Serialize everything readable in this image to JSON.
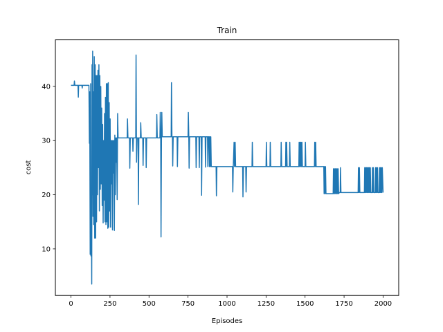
{
  "chart_data": {
    "type": "line",
    "title": "Train",
    "xlabel": "Episodes",
    "ylabel": "cost",
    "xlim": [
      -100,
      2100
    ],
    "ylim": [
      1.4,
      48.6
    ],
    "xticks": [
      0,
      250,
      500,
      750,
      1000,
      1250,
      1500,
      1750,
      2000
    ],
    "yticks": [
      10,
      20,
      30,
      40
    ],
    "grid": false,
    "legend": "none",
    "series": [
      {
        "color": "#1f77b4",
        "points": [
          [
            0,
            40.2
          ],
          [
            20,
            40.2
          ],
          [
            22,
            41
          ],
          [
            25,
            40.2
          ],
          [
            45,
            40.2
          ],
          [
            47,
            38
          ],
          [
            49,
            40.2
          ],
          [
            70,
            40.2
          ],
          [
            72,
            39.7
          ],
          [
            74,
            40.2
          ],
          [
            110,
            40.2
          ],
          [
            115,
            40.2
          ],
          [
            118,
            29.5
          ],
          [
            120,
            39
          ],
          [
            123,
            9
          ],
          [
            126,
            40.5
          ],
          [
            128,
            8.7
          ],
          [
            131,
            15
          ],
          [
            133,
            3.5
          ],
          [
            135,
            44
          ],
          [
            137,
            20
          ],
          [
            139,
            46.5
          ],
          [
            141,
            16
          ],
          [
            144,
            39
          ],
          [
            146,
            14.5
          ],
          [
            149,
            45.5
          ],
          [
            152,
            12
          ],
          [
            155,
            44
          ],
          [
            158,
            12
          ],
          [
            161,
            42
          ],
          [
            164,
            15
          ],
          [
            167,
            42
          ],
          [
            170,
            20
          ],
          [
            173,
            43
          ],
          [
            176,
            25
          ],
          [
            179,
            44
          ],
          [
            182,
            17
          ],
          [
            185,
            42
          ],
          [
            188,
            21
          ],
          [
            191,
            40
          ],
          [
            194,
            22
          ],
          [
            197,
            36
          ],
          [
            200,
            18
          ],
          [
            203,
            33
          ],
          [
            206,
            14.8
          ],
          [
            209,
            30
          ],
          [
            212,
            19
          ],
          [
            215,
            35
          ],
          [
            218,
            15
          ],
          [
            221,
            38
          ],
          [
            224,
            14.5
          ],
          [
            227,
            40.5
          ],
          [
            230,
            15
          ],
          [
            233,
            40.5
          ],
          [
            236,
            13.8
          ],
          [
            239,
            40.7
          ],
          [
            242,
            14
          ],
          [
            245,
            37
          ],
          [
            248,
            17
          ],
          [
            251,
            34
          ],
          [
            254,
            14
          ],
          [
            257,
            30
          ],
          [
            260,
            22
          ],
          [
            263,
            30
          ],
          [
            266,
            13.5
          ],
          [
            269,
            30
          ],
          [
            272,
            24
          ],
          [
            275,
            30
          ],
          [
            278,
            13.4
          ],
          [
            281,
            31
          ],
          [
            284,
            20
          ],
          [
            287,
            30.5
          ],
          [
            290,
            26
          ],
          [
            293,
            30.5
          ],
          [
            296,
            19.1
          ],
          [
            299,
            35
          ],
          [
            302,
            30.5
          ],
          [
            360,
            30.5
          ],
          [
            362,
            34
          ],
          [
            365,
            30.5
          ],
          [
            375,
            30.5
          ],
          [
            377,
            24.9
          ],
          [
            380,
            30.5
          ],
          [
            395,
            30.5
          ],
          [
            397,
            28
          ],
          [
            400,
            30.5
          ],
          [
            415,
            30.5
          ],
          [
            417,
            45.8
          ],
          [
            420,
            26
          ],
          [
            423,
            30.5
          ],
          [
            430,
            30.5
          ],
          [
            432,
            18.2
          ],
          [
            435,
            30.5
          ],
          [
            445,
            30.5
          ],
          [
            447,
            33.3
          ],
          [
            450,
            30.5
          ],
          [
            460,
            30.5
          ],
          [
            462,
            25.4
          ],
          [
            465,
            30.5
          ],
          [
            480,
            30.5
          ],
          [
            482,
            25
          ],
          [
            485,
            30.5
          ],
          [
            548,
            30.5
          ],
          [
            550,
            34.8
          ],
          [
            553,
            30.5
          ],
          [
            570,
            30.5
          ],
          [
            572,
            35.2
          ],
          [
            575,
            30.5
          ],
          [
            577,
            12.2
          ],
          [
            580,
            30.7
          ],
          [
            582,
            35.2
          ],
          [
            585,
            30.7
          ],
          [
            642,
            30.7
          ],
          [
            644,
            40.7
          ],
          [
            647,
            30.7
          ],
          [
            650,
            30.7
          ],
          [
            652,
            25.3
          ],
          [
            655,
            30.7
          ],
          [
            680,
            30.7
          ],
          [
            682,
            25.2
          ],
          [
            685,
            30.7
          ],
          [
            750,
            30.7
          ],
          [
            752,
            35.2
          ],
          [
            755,
            30.7
          ],
          [
            757,
            24.9
          ],
          [
            760,
            30.7
          ],
          [
            800,
            30.7
          ],
          [
            802,
            25
          ],
          [
            805,
            30.7
          ],
          [
            820,
            30.7
          ],
          [
            822,
            25
          ],
          [
            825,
            30.7
          ],
          [
            835,
            30.7
          ],
          [
            837,
            19.9
          ],
          [
            840,
            30.7
          ],
          [
            860,
            30.7
          ],
          [
            862,
            25.1
          ],
          [
            865,
            30.7
          ],
          [
            875,
            30.7
          ],
          [
            877,
            25.2
          ],
          [
            880,
            30.7
          ],
          [
            885,
            30.7
          ],
          [
            887,
            25.2
          ],
          [
            890,
            30.7
          ],
          [
            893,
            25.2
          ],
          [
            896,
            30.7
          ],
          [
            899,
            25.2
          ],
          [
            930,
            25.2
          ],
          [
            932,
            19.8
          ],
          [
            935,
            25.2
          ],
          [
            1035,
            25.2
          ],
          [
            1037,
            20.5
          ],
          [
            1040,
            25.2
          ],
          [
            1045,
            29.7
          ],
          [
            1048,
            25.2
          ],
          [
            1052,
            29.7
          ],
          [
            1055,
            25.2
          ],
          [
            1100,
            25.2
          ],
          [
            1102,
            19.6
          ],
          [
            1105,
            25.2
          ],
          [
            1120,
            25.2
          ],
          [
            1122,
            20.5
          ],
          [
            1125,
            25.2
          ],
          [
            1160,
            25.2
          ],
          [
            1162,
            29.7
          ],
          [
            1165,
            25.2
          ],
          [
            1250,
            25.2
          ],
          [
            1252,
            29.7
          ],
          [
            1255,
            25.2
          ],
          [
            1275,
            25.2
          ],
          [
            1277,
            29.7
          ],
          [
            1280,
            25.2
          ],
          [
            1345,
            25.2
          ],
          [
            1347,
            29.7
          ],
          [
            1350,
            25.2
          ],
          [
            1375,
            25.2
          ],
          [
            1377,
            29.7
          ],
          [
            1380,
            25.2
          ],
          [
            1382,
            29.7
          ],
          [
            1385,
            25.2
          ],
          [
            1400,
            25.2
          ],
          [
            1402,
            29.7
          ],
          [
            1405,
            25.2
          ],
          [
            1460,
            25.2
          ],
          [
            1462,
            29.7
          ],
          [
            1465,
            25.2
          ],
          [
            1468,
            29.7
          ],
          [
            1471,
            25.2
          ],
          [
            1474,
            29.7
          ],
          [
            1477,
            25.2
          ],
          [
            1480,
            29.7
          ],
          [
            1483,
            25.2
          ],
          [
            1500,
            25.2
          ],
          [
            1502,
            29.7
          ],
          [
            1505,
            25.2
          ],
          [
            1560,
            25.2
          ],
          [
            1562,
            29.7
          ],
          [
            1565,
            25.2
          ],
          [
            1568,
            29.7
          ],
          [
            1571,
            25.2
          ],
          [
            1620,
            25.2
          ],
          [
            1622,
            20.2
          ],
          [
            1625,
            25.2
          ],
          [
            1628,
            20.2
          ],
          [
            1631,
            25.2
          ],
          [
            1634,
            20.2
          ],
          [
            1680,
            20.2
          ],
          [
            1682,
            24.8
          ],
          [
            1685,
            20.2
          ],
          [
            1688,
            24.8
          ],
          [
            1691,
            20.2
          ],
          [
            1694,
            24.8
          ],
          [
            1697,
            20.2
          ],
          [
            1700,
            24.8
          ],
          [
            1703,
            20.2
          ],
          [
            1706,
            24.8
          ],
          [
            1709,
            20.2
          ],
          [
            1712,
            24.8
          ],
          [
            1715,
            20.2
          ],
          [
            1720,
            20.4
          ],
          [
            1725,
            20.4
          ],
          [
            1727,
            25
          ],
          [
            1730,
            20.4
          ],
          [
            1840,
            20.4
          ],
          [
            1842,
            25
          ],
          [
            1845,
            20.4
          ],
          [
            1848,
            25
          ],
          [
            1851,
            20.4
          ],
          [
            1880,
            20.4
          ],
          [
            1882,
            25
          ],
          [
            1885,
            20.4
          ],
          [
            1888,
            25
          ],
          [
            1891,
            20.4
          ],
          [
            1894,
            25
          ],
          [
            1897,
            20.4
          ],
          [
            1900,
            25
          ],
          [
            1903,
            20.4
          ],
          [
            1906,
            25
          ],
          [
            1909,
            20.4
          ],
          [
            1912,
            25
          ],
          [
            1915,
            20.4
          ],
          [
            1918,
            25
          ],
          [
            1921,
            20.4
          ],
          [
            1930,
            20.4
          ],
          [
            1932,
            25
          ],
          [
            1935,
            20.4
          ],
          [
            1938,
            25
          ],
          [
            1941,
            20.4
          ],
          [
            1950,
            20.4
          ],
          [
            1952,
            25
          ],
          [
            1955,
            20.4
          ],
          [
            1958,
            25
          ],
          [
            1961,
            20.4
          ],
          [
            1964,
            25
          ],
          [
            1967,
            20.4
          ],
          [
            1975,
            20.4
          ],
          [
            1977,
            25
          ],
          [
            1980,
            20.4
          ],
          [
            1983,
            25
          ],
          [
            1986,
            20.4
          ],
          [
            1989,
            25
          ],
          [
            1992,
            20.4
          ],
          [
            1995,
            25
          ],
          [
            2000,
            20.4
          ]
        ]
      }
    ]
  }
}
